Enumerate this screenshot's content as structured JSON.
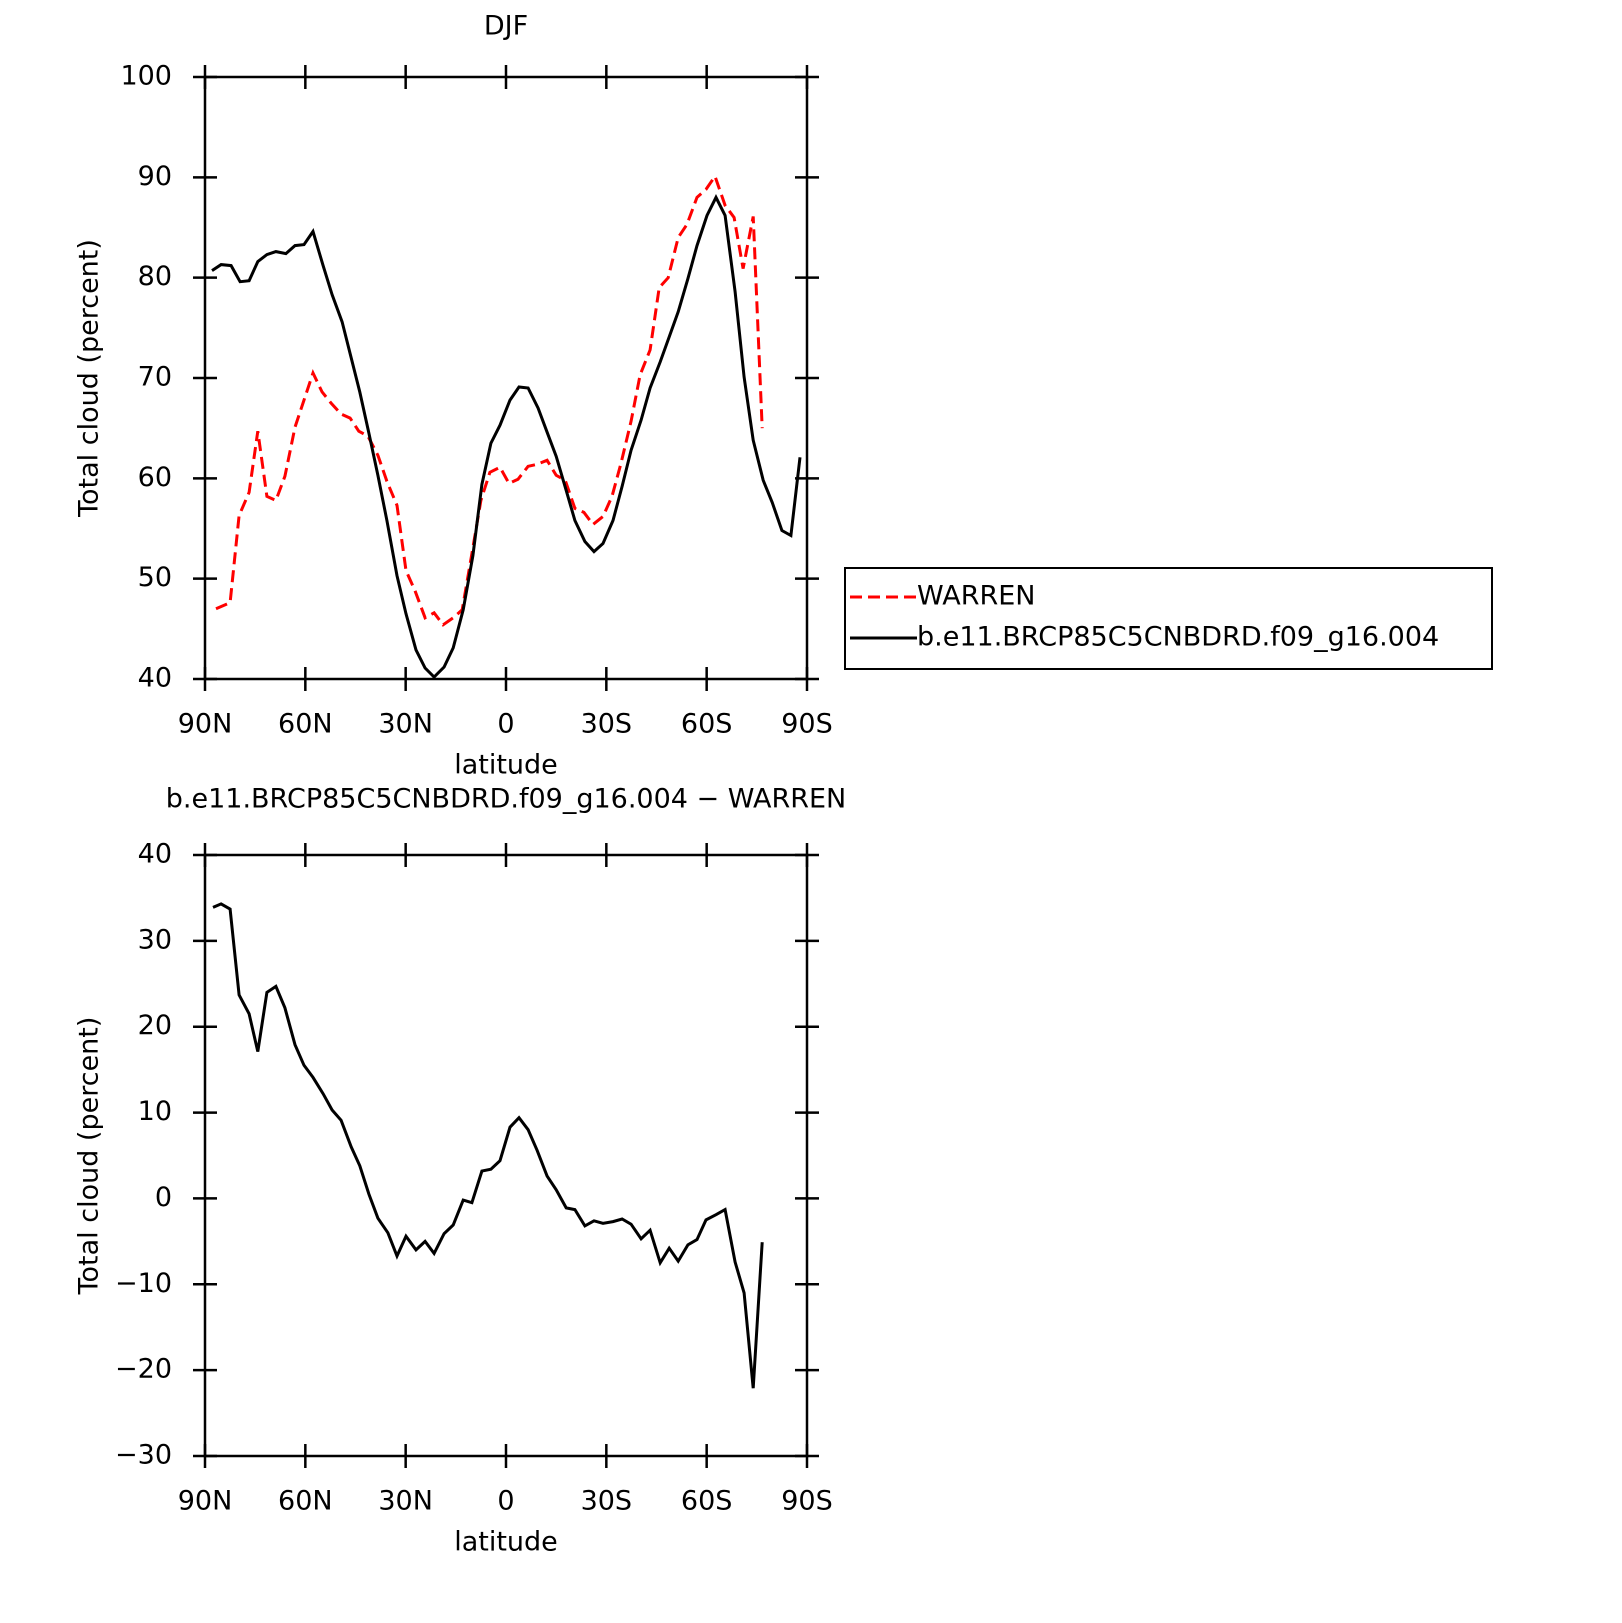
{
  "chart_data": [
    {
      "type": "line",
      "title": "DJF",
      "xlabel": "latitude",
      "ylabel": "Total cloud (percent)",
      "xlim": [
        90,
        -90
      ],
      "xticks": [
        {
          "value": 90,
          "label": "90N"
        },
        {
          "value": 60,
          "label": "60N"
        },
        {
          "value": 30,
          "label": "30N"
        },
        0,
        {
          "value": -30,
          "label": "30S"
        },
        {
          "value": -60,
          "label": "60S"
        },
        {
          "value": -90,
          "label": "90S"
        }
      ],
      "ylim": [
        40,
        100
      ],
      "yticks": [
        40,
        50,
        60,
        70,
        80,
        90,
        100
      ],
      "legend": "right",
      "series": [
        {
          "name": "WARREN",
          "color": "#ff0000",
          "dashed": true,
          "x": [
            86.7,
            82.5,
            79.8,
            76.8,
            74.2,
            71.5,
            68.8,
            66.1,
            63.1,
            60.4,
            57.7,
            55.0,
            52.3,
            49.3,
            46.6,
            44.0,
            41.3,
            38.3,
            35.6,
            32.6,
            29.9,
            27.2,
            24.2,
            21.5,
            18.8,
            15.8,
            13.1,
            10.2,
            7.5,
            4.8,
            1.8,
            -0.9,
            -3.6,
            -6.6,
            -9.3,
            -12.3,
            -15.0,
            -17.7,
            -20.6,
            -23.3,
            -26.0,
            -29.0,
            -31.7,
            -34.4,
            -37.4,
            -40.1,
            -43.1,
            -45.8,
            -48.5,
            -51.5,
            -54.1,
            -57.1,
            -59.8,
            -62.5,
            -65.5,
            -68.2,
            -70.9,
            -73.9,
            -76.6
          ],
          "values": [
            47.0,
            47.6,
            56.3,
            58.6,
            64.7,
            58.2,
            57.8,
            60.2,
            65.1,
            67.8,
            70.5,
            68.6,
            67.5,
            66.4,
            66.0,
            64.7,
            64.2,
            62.3,
            59.7,
            57.3,
            50.8,
            48.8,
            46.1,
            46.6,
            45.4,
            46.1,
            46.9,
            52.5,
            57.8,
            60.6,
            61.1,
            59.5,
            59.9,
            61.2,
            61.4,
            61.8,
            60.3,
            59.8,
            57.0,
            56.6,
            55.4,
            56.2,
            58.2,
            61.5,
            65.7,
            70.3,
            72.8,
            79.0,
            80.0,
            84.0,
            85.3,
            88.0,
            88.8,
            90.1,
            87.2,
            86.0,
            80.9,
            86.1,
            65.0
          ]
        },
        {
          "name": "b.e11.BRCP85C5CNBDRD.f09_g16.004",
          "color": "#000000",
          "dashed": false,
          "x": [
            87.9,
            85.2,
            82.2,
            79.5,
            76.8,
            74.2,
            71.5,
            68.8,
            65.8,
            63.1,
            60.4,
            57.7,
            54.7,
            52.0,
            49.0,
            46.3,
            43.7,
            41.0,
            38.3,
            35.6,
            32.6,
            29.9,
            26.9,
            24.2,
            21.5,
            18.5,
            15.8,
            12.8,
            9.9,
            7.2,
            4.5,
            1.8,
            -1.2,
            -3.9,
            -6.6,
            -9.6,
            -12.3,
            -15.0,
            -18.0,
            -20.6,
            -23.6,
            -26.3,
            -29.0,
            -32.0,
            -34.7,
            -37.4,
            -40.4,
            -43.1,
            -46.1,
            -48.8,
            -51.5,
            -54.4,
            -57.1,
            -60.1,
            -62.8,
            -65.5,
            -68.5,
            -71.2,
            -73.9,
            -76.9,
            -79.6,
            -82.5,
            -85.2,
            -87.9
          ],
          "values": [
            80.7,
            81.3,
            81.2,
            79.6,
            79.7,
            81.6,
            82.3,
            82.6,
            82.4,
            83.2,
            83.3,
            84.6,
            81.2,
            78.3,
            75.6,
            72.0,
            68.6,
            64.5,
            60.3,
            55.8,
            50.3,
            46.5,
            42.9,
            41.1,
            40.2,
            41.2,
            43.1,
            46.9,
            52.3,
            59.4,
            63.5,
            65.3,
            67.8,
            69.1,
            69.0,
            67.0,
            64.6,
            62.2,
            58.8,
            55.8,
            53.7,
            52.7,
            53.5,
            55.8,
            59.2,
            62.8,
            65.8,
            69.0,
            71.6,
            74.1,
            76.6,
            79.9,
            83.2,
            86.2,
            88.0,
            86.2,
            78.6,
            70.1,
            63.8,
            59.8,
            57.6,
            54.8,
            54.3,
            62.1
          ]
        }
      ]
    },
    {
      "type": "line",
      "title": "b.e11.BRCP85C5CNBDRD.f09_g16.004 − WARREN",
      "xlabel": "latitude",
      "ylabel": "Total cloud (percent)",
      "xlim": [
        90,
        -90
      ],
      "xticks": [
        {
          "value": 90,
          "label": "90N"
        },
        {
          "value": 60,
          "label": "60N"
        },
        {
          "value": 30,
          "label": "30N"
        },
        0,
        {
          "value": -30,
          "label": "30S"
        },
        {
          "value": -60,
          "label": "60S"
        },
        {
          "value": -90,
          "label": "90S"
        }
      ],
      "ylim": [
        -30,
        40
      ],
      "yticks": [
        {
          "value": -30,
          "label": "−30"
        },
        {
          "value": -20,
          "label": "−20"
        },
        {
          "value": -10,
          "label": "−10"
        },
        0,
        10,
        20,
        30,
        40
      ],
      "series": [
        {
          "color": "#000000",
          "dashed": false,
          "x": [
            87.6,
            85.2,
            82.5,
            79.8,
            76.8,
            74.2,
            71.5,
            68.8,
            66.1,
            63.1,
            60.4,
            57.7,
            54.7,
            52.0,
            49.3,
            46.3,
            43.7,
            41.0,
            38.3,
            35.3,
            32.6,
            29.9,
            26.9,
            24.2,
            21.5,
            18.5,
            15.8,
            12.8,
            10.2,
            7.2,
            4.5,
            1.8,
            -1.2,
            -3.9,
            -6.6,
            -9.3,
            -12.3,
            -15.0,
            -18.0,
            -20.6,
            -23.6,
            -26.3,
            -29.0,
            -32.0,
            -34.7,
            -37.4,
            -40.4,
            -43.1,
            -46.1,
            -48.8,
            -51.5,
            -54.4,
            -57.1,
            -59.8,
            -62.8,
            -65.5,
            -68.5,
            -71.2,
            -73.9,
            -76.6
          ],
          "values": [
            33.9,
            34.3,
            33.7,
            23.7,
            21.5,
            17.1,
            24.0,
            24.7,
            22.2,
            17.9,
            15.5,
            14.1,
            12.2,
            10.3,
            9.1,
            6.0,
            3.8,
            0.5,
            -2.3,
            -4.0,
            -6.7,
            -4.4,
            -6.0,
            -5.0,
            -6.4,
            -4.1,
            -3.1,
            -0.2,
            -0.5,
            3.2,
            3.4,
            4.4,
            8.3,
            9.4,
            8.0,
            5.6,
            2.6,
            1.0,
            -1.1,
            -1.3,
            -3.2,
            -2.6,
            -2.9,
            -2.7,
            -2.4,
            -3.0,
            -4.7,
            -3.7,
            -7.5,
            -5.8,
            -7.3,
            -5.4,
            -4.8,
            -2.5,
            -1.9,
            -1.3,
            -7.4,
            -11.0,
            -22.1,
            -5.1
          ]
        }
      ]
    }
  ]
}
